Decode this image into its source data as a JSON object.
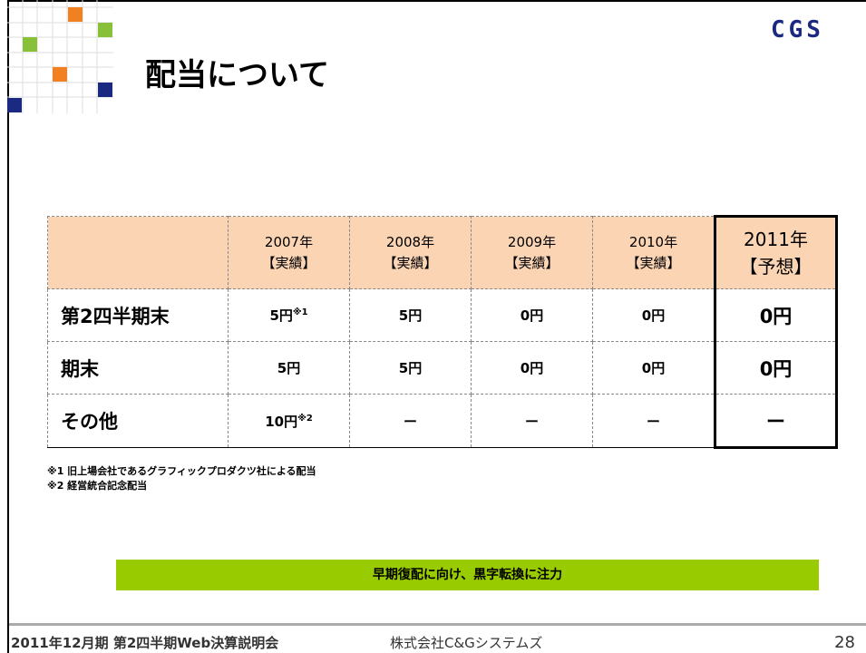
{
  "header": {
    "title": "配当について",
    "logo": "CGS"
  },
  "table": {
    "columns": [
      {
        "year": "2007年",
        "kind": "【実績】"
      },
      {
        "year": "2008年",
        "kind": "【実績】"
      },
      {
        "year": "2009年",
        "kind": "【実績】"
      },
      {
        "year": "2010年",
        "kind": "【実績】"
      },
      {
        "year": "2011年",
        "kind": "【予想】"
      }
    ],
    "rows": [
      {
        "label": "第2四半期末",
        "cells": [
          {
            "text": "5円",
            "sup": "※1"
          },
          {
            "text": "5円"
          },
          {
            "text": "0円"
          },
          {
            "text": "0円"
          },
          {
            "text": "0円"
          }
        ]
      },
      {
        "label": "期末",
        "cells": [
          {
            "text": "5円"
          },
          {
            "text": "5円"
          },
          {
            "text": "0円"
          },
          {
            "text": "0円"
          },
          {
            "text": "0円"
          }
        ]
      },
      {
        "label": "その他",
        "cells": [
          {
            "text": "10円",
            "sup": "※2"
          },
          {
            "text": "ー"
          },
          {
            "text": "ー"
          },
          {
            "text": "ー"
          },
          {
            "text": "ー"
          }
        ]
      }
    ]
  },
  "notes": [
    "※1 旧上場会社であるグラフィックプロダクツ社による配当",
    "※2 経営統合記念配当"
  ],
  "banner": "早期復配に向け、黒字転換に注力",
  "footer": {
    "event": "2011年12月期 第2四半期Web決算説明会",
    "company": "株式会社C&Gシステムズ",
    "page": "28"
  }
}
